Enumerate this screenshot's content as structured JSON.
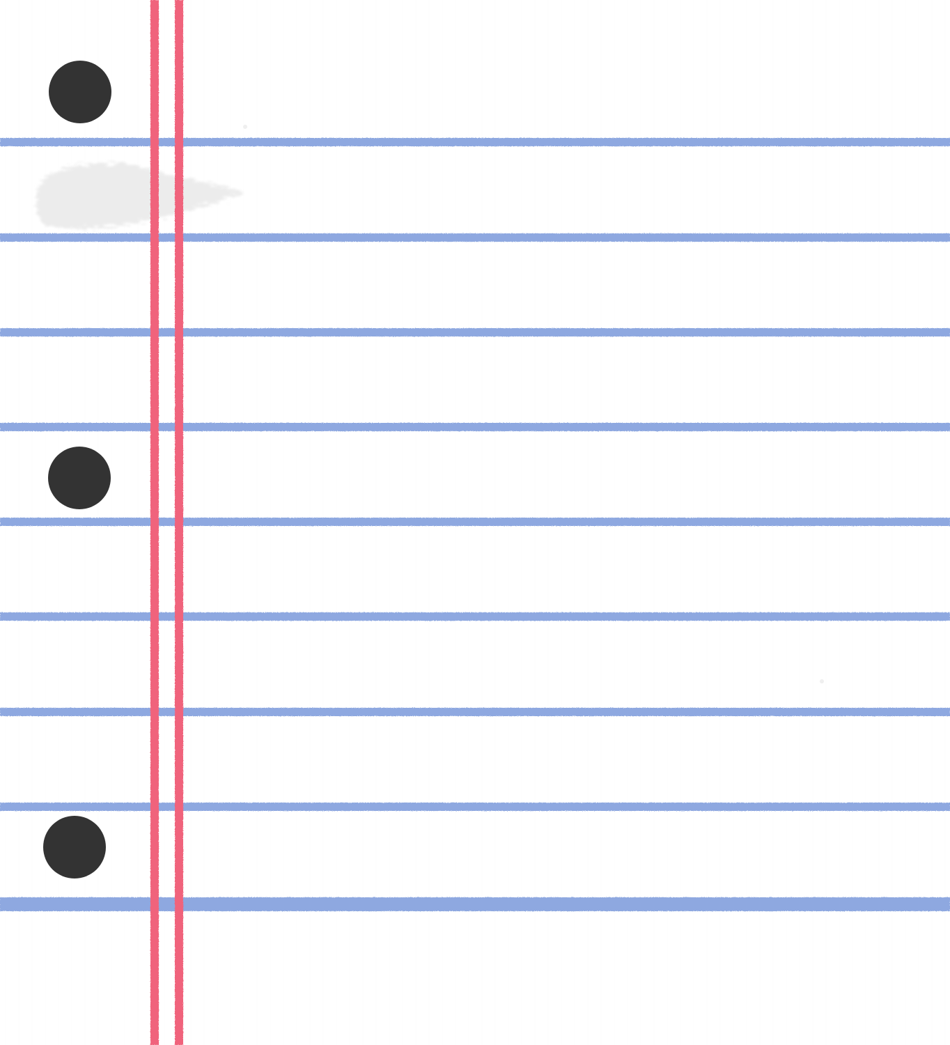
{
  "sheet": {
    "type": "lined-notebook-paper",
    "paper_color": "#ffffff",
    "rule_color": "#8ea8e0",
    "margin_color": "#f0637c",
    "hole_color": "#333333",
    "smudge_color": "#e8e8e8",
    "ruled_line_count": 9,
    "margin_line_count": 2,
    "hole_count": 3
  }
}
